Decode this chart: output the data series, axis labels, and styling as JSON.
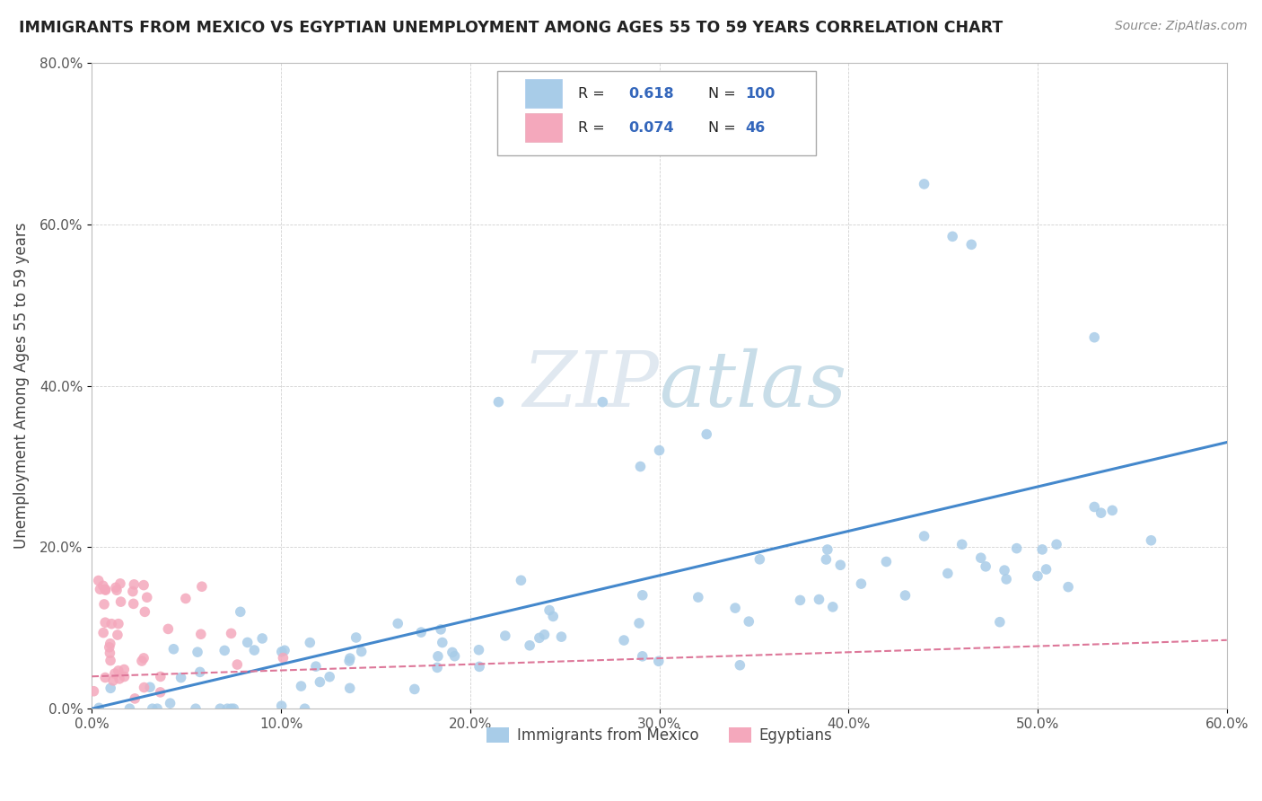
{
  "title": "IMMIGRANTS FROM MEXICO VS EGYPTIAN UNEMPLOYMENT AMONG AGES 55 TO 59 YEARS CORRELATION CHART",
  "source": "Source: ZipAtlas.com",
  "ylabel": "Unemployment Among Ages 55 to 59 years",
  "legend_label1": "Immigrants from Mexico",
  "legend_label2": "Egyptians",
  "R1": 0.618,
  "N1": 100,
  "R2": 0.074,
  "N2": 46,
  "xlim": [
    0.0,
    0.6
  ],
  "ylim": [
    0.0,
    0.8
  ],
  "xticks": [
    0.0,
    0.1,
    0.2,
    0.3,
    0.4,
    0.5,
    0.6
  ],
  "yticks": [
    0.0,
    0.2,
    0.4,
    0.6,
    0.8
  ],
  "color_blue": "#a8cce8",
  "color_pink": "#f4a8bc",
  "color_blue_line": "#4488cc",
  "color_pink_line": "#dd7799",
  "color_text_blue": "#3366bb",
  "background": "#ffffff",
  "grid_color": "#cccccc",
  "blue_line_x0": 0.0,
  "blue_line_y0": 0.0,
  "blue_line_x1": 0.6,
  "blue_line_y1": 0.33,
  "pink_line_x0": 0.0,
  "pink_line_y0": 0.04,
  "pink_line_x1": 0.6,
  "pink_line_y1": 0.085
}
